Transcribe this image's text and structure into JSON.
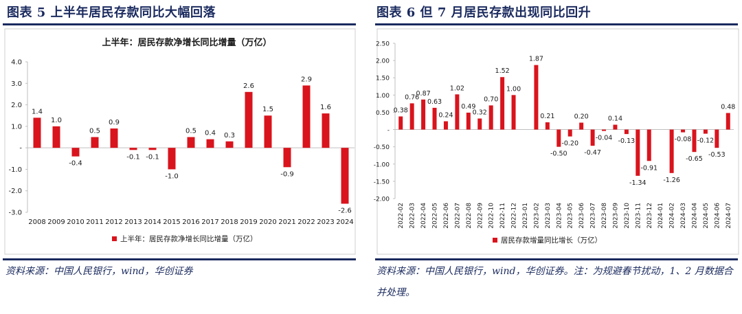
{
  "left": {
    "figure_title": "图表 5   上半年居民存款同比大幅回落",
    "source": "资料来源：中国人民银行，wind，华创证券"
  },
  "right": {
    "figure_title": "图表 6   但 7 月居民存款出现同比回升",
    "source": "资料来源：中国人民银行，wind，华创证券。注：为规避春节扰动，1、2 月数据合并处理。"
  },
  "chart_data": [
    {
      "type": "bar",
      "title": "上半年：居民存款净增长同比增量（万亿）",
      "xlabel": "",
      "ylabel": "",
      "categories": [
        "2008",
        "2009",
        "2010",
        "2011",
        "2012",
        "2013",
        "2014",
        "2015",
        "2016",
        "2017",
        "2018",
        "2019",
        "2020",
        "2021",
        "2022",
        "2023",
        "2024"
      ],
      "series": [
        {
          "name": "上半年：居民存款净增长同比增量（万亿）",
          "values": [
            1.4,
            1.0,
            -0.4,
            0.5,
            0.9,
            -0.1,
            -0.1,
            -1.0,
            0.5,
            0.4,
            0.3,
            2.6,
            1.5,
            -0.9,
            2.9,
            1.6,
            -2.6
          ],
          "labels": [
            "1.4",
            "1.0",
            "-0.4",
            "0.5",
            "0.9",
            "-0.1",
            "-0.1",
            "-1.0",
            "0.5",
            "0.4",
            "0.3",
            "2.6",
            "1.5",
            "-0.9",
            "2.9",
            "1.6",
            "-2.6"
          ]
        }
      ],
      "ylim": [
        -3.0,
        4.0
      ],
      "yticks": [
        "4.0",
        "3.0",
        "2.0",
        "1.0",
        "-",
        "-1.0",
        "-2.0",
        "-3.0"
      ],
      "legend": "bottom",
      "grid": false,
      "bar_color": "#d9141d"
    },
    {
      "type": "bar",
      "title": "",
      "xlabel": "",
      "ylabel": "",
      "categories": [
        "2022-02",
        "2022-03",
        "2022-04",
        "2022-05",
        "2022-06",
        "2022-07",
        "2022-08",
        "2022-09",
        "2022-10",
        "2022-11",
        "2022-12",
        "2023-01",
        "2023-02",
        "2023-03",
        "2023-04",
        "2023-05",
        "2023-06",
        "2023-07",
        "2023-08",
        "2023-09",
        "2023-10",
        "2023-11",
        "2023-12",
        "2024-01",
        "2024-02",
        "2024-03",
        "2024-04",
        "2024-05",
        "2024-06",
        "2024-07"
      ],
      "series": [
        {
          "name": "居民存款增量同比增长（万亿）",
          "values": [
            0.38,
            0.76,
            0.87,
            0.63,
            0.24,
            1.02,
            0.49,
            0.32,
            0.7,
            1.52,
            1.0,
            0,
            1.87,
            0.21,
            -0.5,
            -0.2,
            0.2,
            -0.47,
            -0.04,
            0.14,
            -0.13,
            -1.34,
            -0.91,
            0,
            -1.26,
            -0.08,
            -0.65,
            -0.12,
            -0.53,
            0.48
          ],
          "labels": [
            "0.38",
            "0.76",
            "0.87",
            "0.63",
            "0.24",
            "1.02",
            "0.49",
            "0.32",
            "0.70",
            "1.52",
            "1.00",
            "",
            "1.87",
            "0.21",
            "-0.50",
            "-0.20",
            "0.20",
            "-0.47",
            "-0.04",
            "0.14",
            "-0.13",
            "-1.34",
            "-0.91",
            "",
            "-1.26",
            "-0.08",
            "-0.65",
            "-0.12",
            "-0.53",
            "0.48"
          ]
        }
      ],
      "ylim": [
        -2.0,
        2.5
      ],
      "yticks": [
        "2.50",
        "2.00",
        "1.50",
        "1.00",
        "0.50",
        "-",
        "-0.50",
        "-1.00",
        "-1.50",
        "-2.00"
      ],
      "legend": "bottom",
      "grid": false,
      "bar_color": "#d9141d"
    }
  ]
}
